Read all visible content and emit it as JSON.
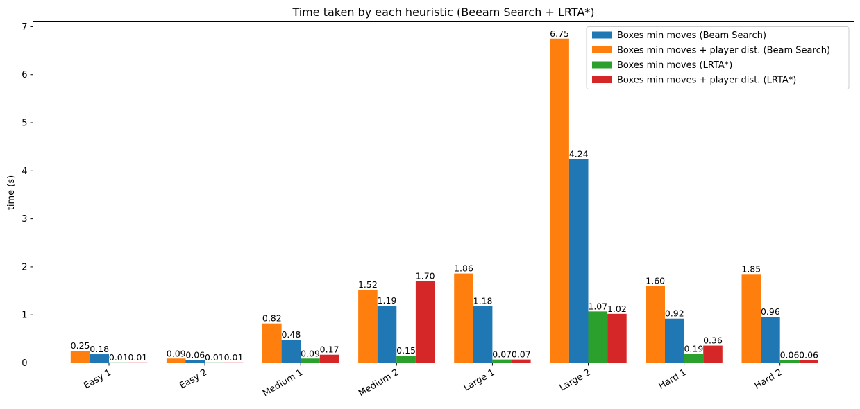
{
  "chart_data": {
    "type": "bar",
    "title": "Time taken by each heuristic (Beeam Search + LRTA*)",
    "xlabel": "",
    "ylabel": "time (s)",
    "ylim": [
      0,
      7.1
    ],
    "yticks": [
      "0",
      "1",
      "2",
      "3",
      "4",
      "5",
      "6",
      "7"
    ],
    "categories": [
      "Easy 1",
      "Easy 2",
      "Medium 1",
      "Medium 2",
      "Large 1",
      "Large 2",
      "Hard 1",
      "Hard 2"
    ],
    "bar_order": [
      1,
      0,
      2,
      3
    ],
    "series": [
      {
        "name": "Boxes min moves (Beam Search)",
        "color": "#1f77b4",
        "values": [
          0.18,
          0.06,
          0.48,
          1.19,
          1.18,
          4.24,
          0.92,
          0.96
        ],
        "labels": [
          "0.18",
          "0.06",
          "0.48",
          "1.19",
          "1.18",
          "4.24",
          "0.92",
          "0.96"
        ]
      },
      {
        "name": "Boxes min moves + player dist. (Beam Search)",
        "color": "#ff7f0e",
        "values": [
          0.25,
          0.09,
          0.82,
          1.52,
          1.86,
          6.75,
          1.6,
          1.85
        ],
        "labels": [
          "0.25",
          "0.09",
          "0.82",
          "1.52",
          "1.86",
          "6.75",
          "1.60",
          "1.85"
        ]
      },
      {
        "name": "Boxes min moves (LRTA*)",
        "color": "#2ca02c",
        "values": [
          0.01,
          0.01,
          0.09,
          0.15,
          0.07,
          1.07,
          0.19,
          0.06
        ],
        "labels": [
          "0.01",
          "0.01",
          "0.09",
          "0.15",
          "0.07",
          "1.07",
          "0.19",
          "0.06"
        ]
      },
      {
        "name": "Boxes min moves + player dist. (LRTA*)",
        "color": "#d62728",
        "values": [
          0.01,
          0.01,
          0.17,
          1.7,
          0.07,
          1.02,
          0.36,
          0.06
        ],
        "labels": [
          "0.01",
          "0.01",
          "0.17",
          "1.70",
          "0.07",
          "1.02",
          "0.36",
          "0.06"
        ]
      }
    ],
    "grid": false,
    "legend_position": "top-right"
  }
}
